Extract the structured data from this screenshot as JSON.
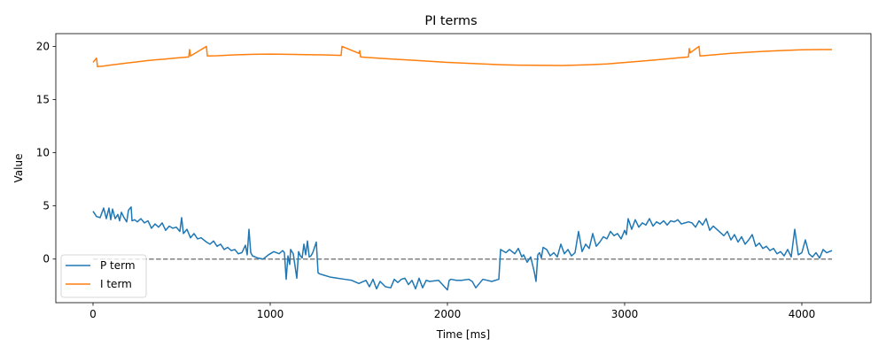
{
  "chart_data": {
    "type": "line",
    "title": "PI terms",
    "xlabel": "Time [ms]",
    "ylabel": "Value",
    "xlim": [
      -210,
      4390
    ],
    "ylim": [
      -4.1,
      21.2
    ],
    "xticks": [
      0,
      1000,
      2000,
      3000,
      4000
    ],
    "yticks": [
      0,
      5,
      10,
      15,
      20
    ],
    "grid": false,
    "legend_position": "lower-left",
    "reference_line": {
      "y": 0,
      "x_range": [
        0,
        4170
      ],
      "style": "dashed",
      "color": "#808080"
    },
    "series": [
      {
        "name": "P term",
        "color": "#1f77b4",
        "x": [
          0,
          20,
          40,
          60,
          75,
          90,
          100,
          110,
          125,
          140,
          150,
          160,
          175,
          190,
          200,
          215,
          220,
          235,
          250,
          270,
          290,
          310,
          330,
          350,
          370,
          390,
          410,
          430,
          450,
          470,
          490,
          500,
          510,
          530,
          550,
          570,
          590,
          610,
          640,
          660,
          680,
          700,
          720,
          740,
          760,
          780,
          800,
          820,
          840,
          860,
          870,
          880,
          890,
          900,
          930,
          960,
          990,
          1020,
          1050,
          1070,
          1080,
          1090,
          1100,
          1110,
          1115,
          1130,
          1150,
          1160,
          1170,
          1180,
          1190,
          1200,
          1210,
          1220,
          1230,
          1240,
          1250,
          1260,
          1270,
          1280,
          1300,
          1340,
          1380,
          1420,
          1460,
          1500,
          1540,
          1560,
          1580,
          1600,
          1620,
          1650,
          1680,
          1700,
          1720,
          1740,
          1760,
          1780,
          1800,
          1820,
          1840,
          1860,
          1880,
          1900,
          1950,
          2000,
          2010,
          2020,
          2050,
          2080,
          2120,
          2140,
          2160,
          2200,
          2250,
          2290,
          2300,
          2310,
          2330,
          2350,
          2380,
          2400,
          2420,
          2430,
          2450,
          2470,
          2490,
          2500,
          2510,
          2520,
          2530,
          2540,
          2560,
          2580,
          2600,
          2620,
          2640,
          2660,
          2680,
          2700,
          2720,
          2740,
          2760,
          2780,
          2800,
          2820,
          2840,
          2860,
          2880,
          2900,
          2920,
          2940,
          2960,
          2980,
          3000,
          3010,
          3020,
          3040,
          3060,
          3080,
          3100,
          3120,
          3140,
          3160,
          3180,
          3200,
          3220,
          3240,
          3260,
          3280,
          3300,
          3320,
          3340,
          3360,
          3380,
          3400,
          3420,
          3440,
          3460,
          3480,
          3500,
          3520,
          3540,
          3560,
          3580,
          3600,
          3620,
          3640,
          3660,
          3680,
          3700,
          3720,
          3740,
          3760,
          3780,
          3800,
          3820,
          3840,
          3860,
          3880,
          3900,
          3920,
          3940,
          3960,
          3980,
          4000,
          4020,
          4040,
          4060,
          4080,
          4100,
          4120,
          4140,
          4170
        ],
        "values": [
          4.5,
          4.0,
          3.9,
          4.8,
          3.8,
          4.8,
          3.7,
          4.7,
          3.8,
          4.2,
          3.6,
          4.4,
          3.9,
          3.5,
          4.6,
          4.9,
          3.6,
          3.7,
          3.5,
          3.8,
          3.4,
          3.6,
          2.9,
          3.3,
          3.0,
          3.4,
          2.7,
          3.1,
          2.9,
          3.0,
          2.6,
          3.9,
          2.4,
          2.8,
          2.0,
          2.4,
          1.9,
          2.0,
          1.6,
          1.4,
          1.7,
          1.2,
          1.4,
          0.9,
          1.1,
          0.8,
          0.9,
          0.5,
          0.6,
          1.3,
          0.4,
          2.8,
          0.6,
          0.3,
          0.1,
          0.0,
          0.4,
          0.7,
          0.5,
          0.8,
          0.6,
          -1.9,
          0.3,
          -0.5,
          0.9,
          0.5,
          -1.8,
          0.7,
          0.3,
          0.1,
          1.4,
          0.4,
          1.7,
          0.2,
          0.3,
          0.6,
          1.1,
          1.6,
          -1.3,
          -1.4,
          -1.5,
          -1.7,
          -1.8,
          -1.9,
          -2.0,
          -2.3,
          -2.0,
          -2.6,
          -1.9,
          -2.8,
          -2.1,
          -2.6,
          -2.7,
          -1.9,
          -2.2,
          -1.9,
          -1.8,
          -2.4,
          -2.0,
          -2.8,
          -1.8,
          -2.7,
          -2.0,
          -2.1,
          -2.0,
          -2.9,
          -2.0,
          -1.9,
          -2.0,
          -2.0,
          -1.9,
          -2.1,
          -2.7,
          -1.9,
          -2.1,
          -1.9,
          0.9,
          0.8,
          0.6,
          0.9,
          0.5,
          1.0,
          0.2,
          0.4,
          -0.3,
          0.2,
          -1.2,
          -2.1,
          0.4,
          0.6,
          0.1,
          1.1,
          0.9,
          0.3,
          0.6,
          0.2,
          1.4,
          0.5,
          0.9,
          0.3,
          0.6,
          2.6,
          0.7,
          1.4,
          1.0,
          2.4,
          1.2,
          1.6,
          2.1,
          1.9,
          2.6,
          2.2,
          2.4,
          1.9,
          2.7,
          2.3,
          3.8,
          2.8,
          3.7,
          3.0,
          3.4,
          3.2,
          3.8,
          3.1,
          3.5,
          3.3,
          3.6,
          3.2,
          3.6,
          3.5,
          3.7,
          3.3,
          3.4,
          3.5,
          3.4,
          3.0,
          3.6,
          3.2,
          3.8,
          2.7,
          3.1,
          2.8,
          2.5,
          2.2,
          2.6,
          1.8,
          2.3,
          1.6,
          2.1,
          1.4,
          1.8,
          2.3,
          1.2,
          1.5,
          1.0,
          1.2,
          0.8,
          1.0,
          0.5,
          0.7,
          0.3,
          0.9,
          0.2,
          2.8,
          0.4,
          0.6,
          1.8,
          0.5,
          0.2,
          0.6,
          0.1,
          0.9,
          0.6,
          0.8
        ]
      },
      {
        "name": "I term",
        "color": "#ff7f0e",
        "x": [
          0,
          20,
          25,
          60,
          100,
          150,
          200,
          250,
          300,
          350,
          400,
          450,
          500,
          540,
          545,
          550,
          600,
          640,
          645,
          700,
          800,
          900,
          1000,
          1100,
          1200,
          1300,
          1400,
          1405,
          1500,
          1505,
          1510,
          1600,
          1700,
          1800,
          1900,
          2000,
          2100,
          2200,
          2300,
          2400,
          2500,
          2640,
          2700,
          2800,
          2900,
          3000,
          3100,
          3200,
          3300,
          3360,
          3365,
          3370,
          3420,
          3425,
          3500,
          3600,
          3700,
          3800,
          3900,
          4000,
          4100,
          4170
        ],
        "values": [
          18.5,
          18.9,
          18.1,
          18.15,
          18.25,
          18.35,
          18.45,
          18.55,
          18.65,
          18.73,
          18.8,
          18.88,
          18.95,
          19.0,
          19.7,
          19.1,
          19.6,
          20.0,
          19.1,
          19.12,
          19.2,
          19.25,
          19.28,
          19.25,
          19.22,
          19.2,
          19.15,
          20.0,
          19.35,
          19.6,
          19.0,
          18.9,
          18.8,
          18.7,
          18.6,
          18.5,
          18.42,
          18.35,
          18.28,
          18.24,
          18.22,
          18.2,
          18.22,
          18.28,
          18.35,
          18.48,
          18.62,
          18.77,
          18.92,
          19.0,
          19.8,
          19.4,
          20.0,
          19.1,
          19.2,
          19.35,
          19.45,
          19.55,
          19.62,
          19.68,
          19.7,
          19.7
        ]
      }
    ]
  }
}
